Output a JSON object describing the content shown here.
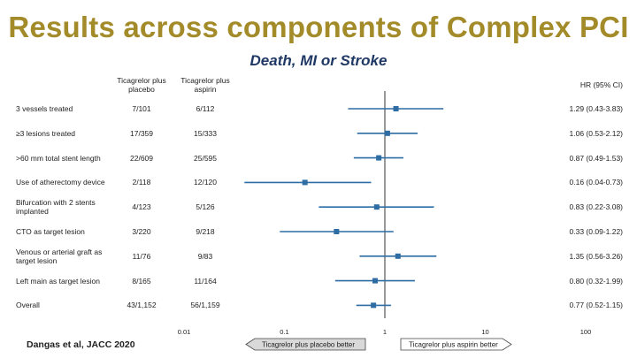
{
  "title": "Results across components of Complex PCI",
  "subtitle": "Death, MI or Stroke",
  "headers": {
    "group1": "Ticagrelor plus placebo",
    "group2": "Ticagrelor plus aspirin",
    "hr": "HR (95% CI)"
  },
  "source": "Dangas et al, JACC 2020",
  "arrows": {
    "left": "Ticagrelor plus placebo better",
    "right": "Ticagrelor plus aspirin better"
  },
  "colors": {
    "title": "#a38b2a",
    "subtitle": "#1f3864",
    "marker": "#2e6ca4"
  },
  "chart_data": {
    "type": "forest",
    "xscale": "log",
    "xlim": [
      0.01,
      100
    ],
    "reference_line": 1,
    "x_ticks": [
      "0.01",
      "0.1",
      "1",
      "10",
      "100"
    ],
    "rows": [
      {
        "label": "3 vessels treated",
        "g1": "7/101",
        "g2": "6/112",
        "hr_text": "1.29 (0.43-3.83)",
        "hr": 1.29,
        "lo": 0.43,
        "hi": 3.83
      },
      {
        "label": "≥3 lesions treated",
        "g1": "17/359",
        "g2": "15/333",
        "hr_text": "1.06 (0.53-2.12)",
        "hr": 1.06,
        "lo": 0.53,
        "hi": 2.12
      },
      {
        "label": ">60 mm total stent length",
        "g1": "22/609",
        "g2": "25/595",
        "hr_text": "0.87 (0.49-1.53)",
        "hr": 0.87,
        "lo": 0.49,
        "hi": 1.53
      },
      {
        "label": "Use of atherectomy device",
        "g1": "2/118",
        "g2": "12/120",
        "hr_text": "0.16 (0.04-0.73)",
        "hr": 0.16,
        "lo": 0.04,
        "hi": 0.73
      },
      {
        "label": "Bifurcation with 2 stents implanted",
        "g1": "4/123",
        "g2": "5/126",
        "hr_text": "0.83 (0.22-3.08)",
        "hr": 0.83,
        "lo": 0.22,
        "hi": 3.08
      },
      {
        "label": "CTO as target lesion",
        "g1": "3/220",
        "g2": "9/218",
        "hr_text": "0.33 (0.09-1.22)",
        "hr": 0.33,
        "lo": 0.09,
        "hi": 1.22
      },
      {
        "label": "Venous or arterial graft as target lesion",
        "g1": "11/76",
        "g2": "9/83",
        "hr_text": "1.35 (0.56-3.26)",
        "hr": 1.35,
        "lo": 0.56,
        "hi": 3.26
      },
      {
        "label": "Left main as target lesion",
        "g1": "8/165",
        "g2": "11/164",
        "hr_text": "0.80 (0.32-1.99)",
        "hr": 0.8,
        "lo": 0.32,
        "hi": 1.99
      },
      {
        "label": "Overall",
        "g1": "43/1,152",
        "g2": "56/1,159",
        "hr_text": "0.77 (0.52-1.15)",
        "hr": 0.77,
        "lo": 0.52,
        "hi": 1.15
      }
    ]
  }
}
